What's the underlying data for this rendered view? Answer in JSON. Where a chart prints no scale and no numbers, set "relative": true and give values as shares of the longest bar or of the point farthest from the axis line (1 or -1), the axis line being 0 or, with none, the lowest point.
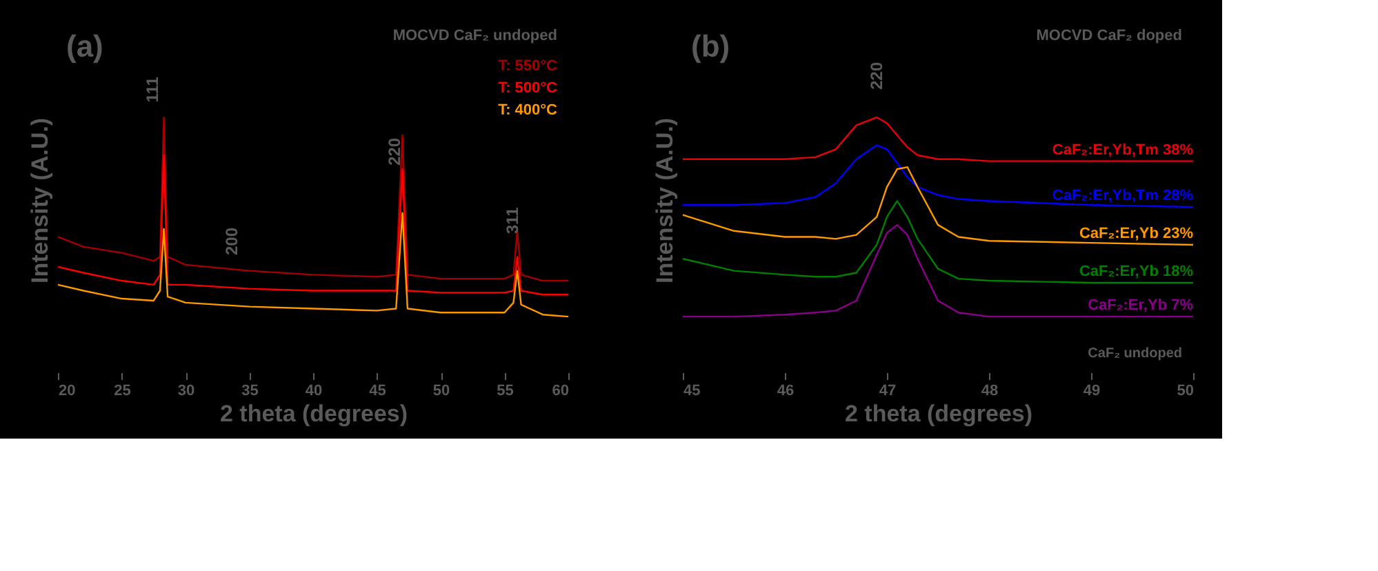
{
  "chart_data": [
    {
      "type": "line",
      "relative": true,
      "xlabel": "2 theta (degrees)",
      "ylabel": "Intensity (A.U.)",
      "tick_labels": "x",
      "legend": "top right",
      "grid": false,
      "xlim": [
        20,
        60
      ],
      "xticks": [
        20,
        25,
        30,
        35,
        40,
        45,
        50,
        55,
        60
      ],
      "x": [
        20,
        22,
        25,
        27.5,
        28.0,
        28.3,
        28.6,
        30,
        35,
        40,
        45,
        46.5,
        47.0,
        47.4,
        50,
        55,
        55.7,
        56.0,
        56.3,
        58,
        60
      ],
      "series": [
        {
          "name": "T: 550°C",
          "color": "#a50000",
          "values": [
            0.4,
            0.35,
            0.32,
            0.28,
            0.3,
            1,
            0.3,
            0.26,
            0.23,
            0.21,
            0.2,
            0.21,
            0.91,
            0.21,
            0.19,
            0.19,
            0.21,
            0.43,
            0.21,
            0.18,
            0.18
          ]
        },
        {
          "name": "T: 500°C",
          "color": "#ff0000",
          "values": [
            0.25,
            0.22,
            0.18,
            0.16,
            0.21,
            0.81,
            0.16,
            0.16,
            0.14,
            0.13,
            0.13,
            0.13,
            0.74,
            0.13,
            0.12,
            0.12,
            0.13,
            0.3,
            0.13,
            0.11,
            0.11
          ]
        },
        {
          "name": "T: 400°C",
          "color": "#ff9900",
          "values": [
            0.16,
            0.13,
            0.09,
            0.08,
            0.13,
            0.44,
            0.1,
            0.07,
            0.05,
            0.04,
            0.03,
            0.04,
            0.52,
            0.04,
            0.02,
            0.02,
            0.07,
            0.23,
            0.06,
            0.01,
            0
          ]
        }
      ],
      "annotations": [
        "(a)",
        "MOCVD CaF₂ undoped",
        "111",
        "200",
        "220",
        "311"
      ]
    },
    {
      "type": "line",
      "relative": true,
      "xlabel": "2 theta (degrees)",
      "ylabel": "Intensity (A.U.)",
      "tick_labels": "x",
      "grid": false,
      "xlim": [
        45,
        50
      ],
      "xticks": [
        45,
        46,
        47,
        48,
        49,
        50
      ],
      "x": [
        45,
        45.5,
        46,
        46.3,
        46.5,
        46.7,
        46.9,
        47.0,
        47.1,
        47.2,
        47.3,
        47.5,
        47.7,
        48,
        49,
        50
      ],
      "series": [
        {
          "name": "CaF₂:Er,Yb,Tm 38%",
          "color": "#e8000b",
          "values": [
            0.79,
            0.79,
            0.79,
            0.8,
            0.84,
            0.96,
            1,
            0.97,
            0.91,
            0.85,
            0.81,
            0.79,
            0.79,
            0.78,
            0.78,
            0.78
          ]
        },
        {
          "name": "CaF₂:Er,Yb,Tm 28%",
          "color": "#0000ff",
          "values": [
            0.56,
            0.56,
            0.57,
            0.6,
            0.67,
            0.79,
            0.86,
            0.84,
            0.77,
            0.7,
            0.65,
            0.61,
            0.59,
            0.58,
            0.56,
            0.55
          ]
        },
        {
          "name": "CaF₂:Er,Yb 23%",
          "color": "#ff9900",
          "values": [
            0.51,
            0.43,
            0.4,
            0.4,
            0.39,
            0.41,
            0.5,
            0.65,
            0.74,
            0.75,
            0.65,
            0.46,
            0.4,
            0.38,
            0.37,
            0.36
          ]
        },
        {
          "name": "CaF₂:Er,Yb 18%",
          "color": "#008000",
          "values": [
            0.29,
            0.23,
            0.21,
            0.2,
            0.2,
            0.22,
            0.36,
            0.5,
            0.58,
            0.5,
            0.39,
            0.24,
            0.19,
            0.18,
            0.17,
            0.17
          ]
        },
        {
          "name": "CaF₂:Er,Yb 7%",
          "color": "#8b008b",
          "values": [
            0.0,
            0.0,
            0.01,
            0.02,
            0.03,
            0.08,
            0.31,
            0.42,
            0.46,
            0.41,
            0.29,
            0.08,
            0.02,
            0.0,
            0.0,
            0.0
          ]
        }
      ],
      "annotations": [
        "(b)",
        "MOCVD  CaF₂ doped",
        "CaF₂ undoped",
        "220"
      ]
    }
  ]
}
